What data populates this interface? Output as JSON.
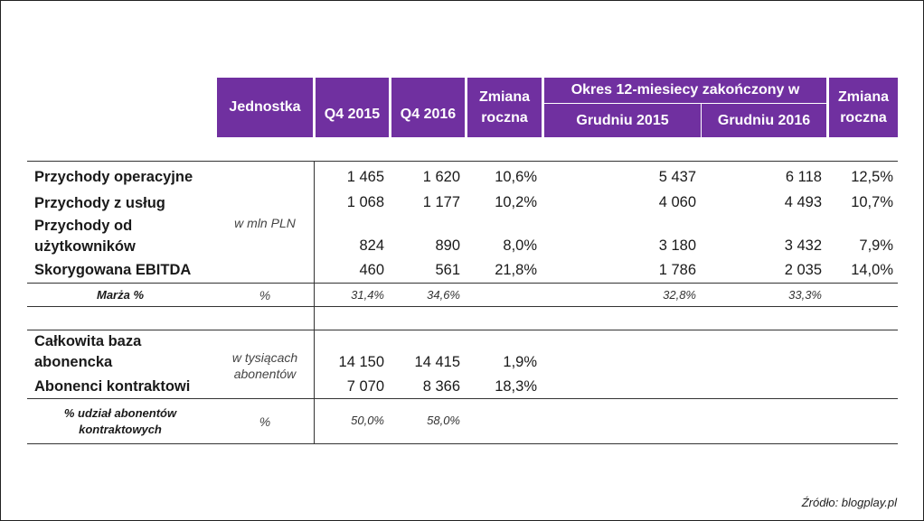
{
  "headers": {
    "jednostka": "Jednostka",
    "q4_2015": "Q4 2015",
    "q4_2016": "Q4 2016",
    "zmiana_1_a": "Zmiana",
    "zmiana_1_b": "roczna",
    "okres": "Okres 12-miesiecy zakończony w",
    "grudniu_2015": "Grudniu 2015",
    "grudniu_2016": "Grudniu 2016",
    "zmiana_2_a": "Zmiana",
    "zmiana_2_b": "roczna"
  },
  "units": {
    "mln_pln": "w mln PLN",
    "percent": "%",
    "tys_a": "w tysiącach",
    "tys_b": "abonentów",
    "percent2": "%"
  },
  "rows": {
    "przychody_operacyjne": {
      "label": "Przychody operacyjne",
      "q4_2015": "1 465",
      "q4_2016": "1 620",
      "zmiana": "10,6%",
      "g2015": "5 437",
      "g2016": "6 118",
      "zmiana2": "12,5%"
    },
    "przychody_uslug": {
      "label": "Przychody z usług",
      "q4_2015": "1 068",
      "q4_2016": "1 177",
      "zmiana": "10,2%",
      "g2015": "4 060",
      "g2016": "4 493",
      "zmiana2": "10,7%"
    },
    "przychody_uzytk": {
      "label_a": "Przychody od",
      "label_b": "użytkowników",
      "q4_2015": "824",
      "q4_2016": "890",
      "zmiana": "8,0%",
      "g2015": "3 180",
      "g2016": "3 432",
      "zmiana2": "7,9%"
    },
    "ebitda": {
      "label": "Skorygowana EBITDA",
      "q4_2015": "460",
      "q4_2016": "561",
      "zmiana": "21,8%",
      "g2015": "1 786",
      "g2016": "2 035",
      "zmiana2": "14,0%"
    },
    "marza": {
      "label": "Marża %",
      "q4_2015": "31,4%",
      "q4_2016": "34,6%",
      "g2015": "32,8%",
      "g2016": "33,3%"
    },
    "baza": {
      "label_a": "Całkowita baza",
      "label_b": "abonencka",
      "q4_2015": "14 150",
      "q4_2016": "14 415",
      "zmiana": "1,9%"
    },
    "kontraktowi": {
      "label": "Abonenci kontraktowi",
      "q4_2015": "7 070",
      "q4_2016": "8 366",
      "zmiana": "18,3%"
    },
    "udzial": {
      "label_a": "% udział abonentów",
      "label_b": "kontraktowych",
      "q4_2015": "50,0%",
      "q4_2016": "58,0%"
    }
  },
  "source": "Źródło: blogplay.pl",
  "colors": {
    "header_bg": "#7030a0",
    "header_text": "#ffffff"
  }
}
